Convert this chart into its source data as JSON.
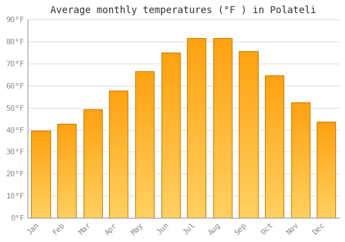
{
  "title": "Average monthly temperatures (°F ) in Polateli",
  "months": [
    "Jan",
    "Feb",
    "Mar",
    "Apr",
    "May",
    "Jun",
    "Jul",
    "Aug",
    "Sep",
    "Oct",
    "Nov",
    "Dec"
  ],
  "values": [
    39.5,
    42.8,
    49.2,
    57.8,
    66.5,
    75.0,
    81.5,
    81.5,
    75.5,
    64.7,
    52.5,
    43.5
  ],
  "bar_color_bottom": "#FFD060",
  "bar_color_top": "#FFA010",
  "bar_edge_color": "#C8820A",
  "background_color": "#FFFFFF",
  "plot_bg_color": "#FFFFFF",
  "ylim": [
    0,
    90
  ],
  "yticks": [
    0,
    10,
    20,
    30,
    40,
    50,
    60,
    70,
    80,
    90
  ],
  "ytick_labels": [
    "0°F",
    "10°F",
    "20°F",
    "30°F",
    "40°F",
    "50°F",
    "60°F",
    "70°F",
    "80°F",
    "90°F"
  ],
  "grid_color": "#E0E0E0",
  "tick_label_color": "#888888",
  "title_color": "#333333",
  "title_fontsize": 10,
  "tick_fontsize": 8,
  "bar_width": 0.72
}
